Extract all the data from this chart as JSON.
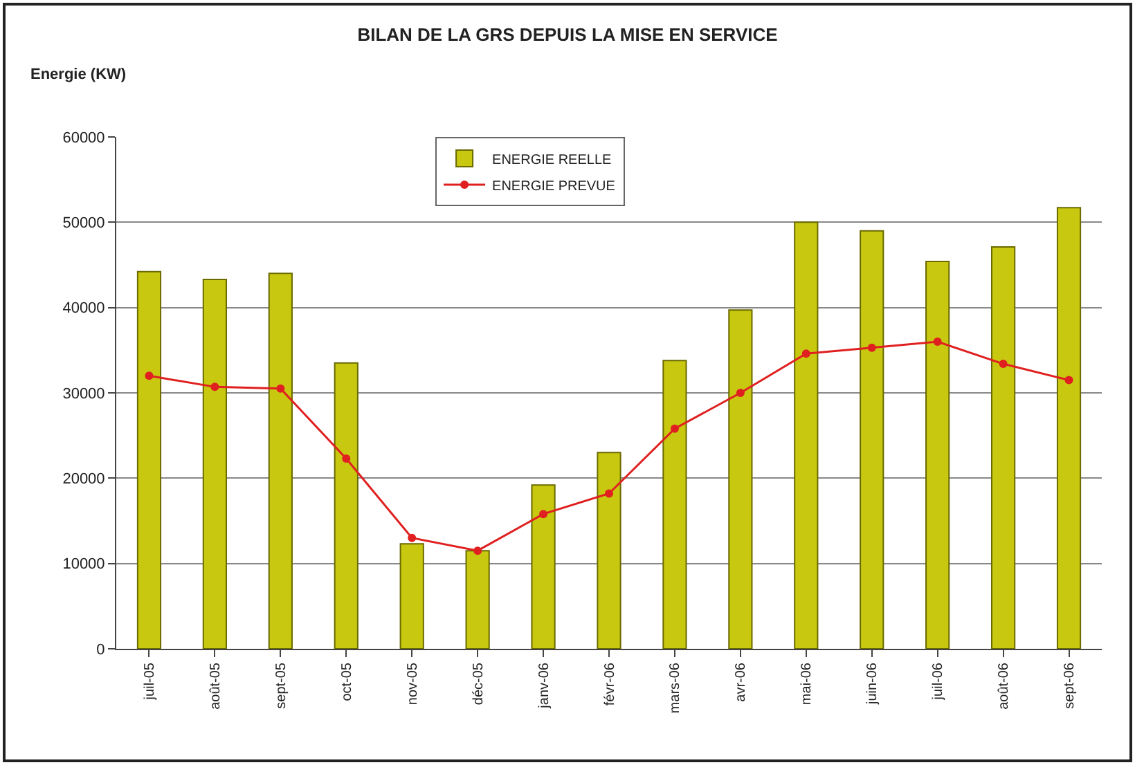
{
  "chart_data": {
    "type": "bar",
    "title": "BILAN DE LA GRS DEPUIS LA MISE EN SERVICE",
    "ylabel": "Energie (KW)",
    "categories": [
      "juil-05",
      "août-05",
      "sept-05",
      "oct-05",
      "nov-05",
      "déc-05",
      "janv-06",
      "févr-06",
      "mars-06",
      "avr-06",
      "mai-06",
      "juin-06",
      "juil-06",
      "août-06",
      "sept-06"
    ],
    "series": [
      {
        "name": "ENERGIE REELLE",
        "color": "#c8c810",
        "values": [
          44200,
          43300,
          44000,
          33500,
          12300,
          11500,
          19200,
          23000,
          33800,
          39700,
          50000,
          49000,
          45400,
          47100,
          51700
        ]
      },
      {
        "name": "ENERGIE PREVUE",
        "type": "line",
        "color": "#e02020",
        "marker": "circle",
        "values": [
          32000,
          30700,
          30500,
          22300,
          13000,
          11500,
          15800,
          18200,
          25800,
          30000,
          34600,
          35300,
          36000,
          33400,
          31500
        ]
      }
    ],
    "ylim": [
      0,
      60000
    ],
    "yticks": [
      0,
      10000,
      20000,
      30000,
      40000,
      50000,
      60000
    ],
    "grid": "y",
    "legend": "top"
  }
}
